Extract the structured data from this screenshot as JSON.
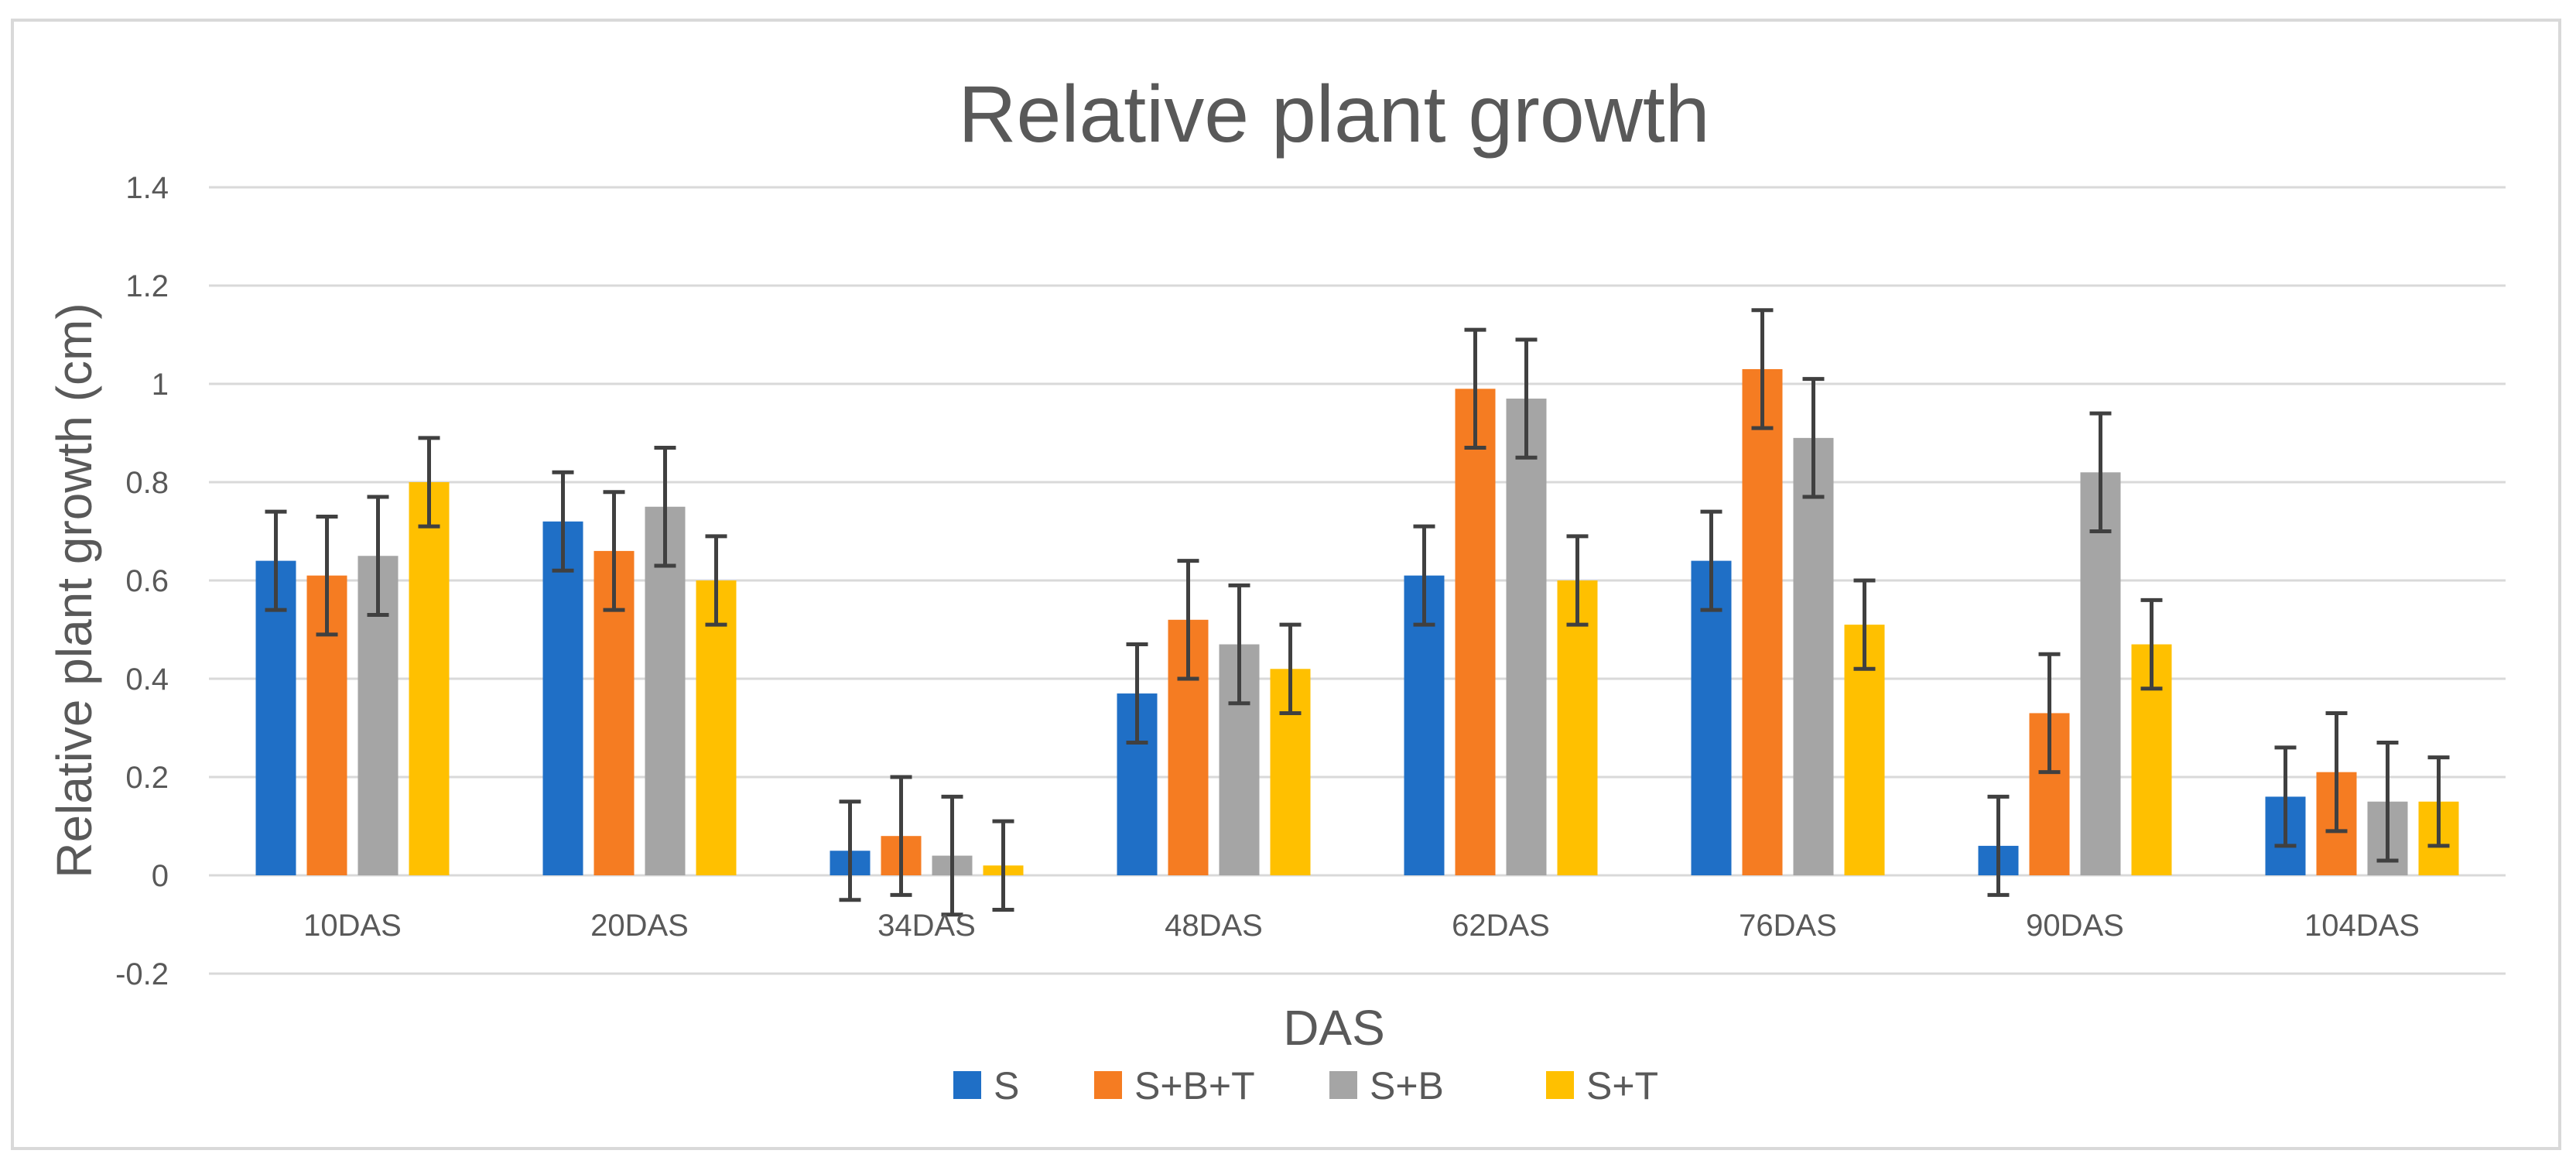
{
  "chart_data": {
    "type": "bar",
    "title": "Relative plant growth",
    "xlabel": "DAS",
    "ylabel": "Relative plant growth (cm)",
    "ylim": [
      -0.2,
      1.4
    ],
    "ytick_labels": [
      "-0.2",
      "0",
      "0.2",
      "0.4",
      "0.6",
      "0.8",
      "1",
      "1.2",
      "1.4"
    ],
    "ytick_values": [
      -0.2,
      0,
      0.2,
      0.4,
      0.6,
      0.8,
      1.0,
      1.2,
      1.4
    ],
    "grid": true,
    "legend_position": "bottom",
    "categories": [
      "10DAS",
      "20DAS",
      "34DAS",
      "48DAS",
      "62DAS",
      "76DAS",
      "90DAS",
      "104DAS"
    ],
    "series": [
      {
        "name": "S",
        "color": "#1f6fc6",
        "values": [
          0.64,
          0.72,
          0.05,
          0.37,
          0.61,
          0.64,
          0.06,
          0.16
        ],
        "errors": [
          0.1,
          0.1,
          0.1,
          0.1,
          0.1,
          0.1,
          0.1,
          0.1
        ]
      },
      {
        "name": "S+B+T",
        "color": "#f57c22",
        "values": [
          0.61,
          0.66,
          0.08,
          0.52,
          0.99,
          1.03,
          0.33,
          0.21
        ],
        "errors": [
          0.12,
          0.12,
          0.12,
          0.12,
          0.12,
          0.12,
          0.12,
          0.12
        ]
      },
      {
        "name": "S+B",
        "color": "#a5a5a5",
        "values": [
          0.65,
          0.75,
          0.04,
          0.47,
          0.97,
          0.89,
          0.82,
          0.15
        ],
        "errors": [
          0.12,
          0.12,
          0.12,
          0.12,
          0.12,
          0.12,
          0.12,
          0.12
        ]
      },
      {
        "name": "S+T",
        "color": "#ffc000",
        "values": [
          0.8,
          0.6,
          0.02,
          0.42,
          0.6,
          0.51,
          0.47,
          0.15
        ],
        "errors": [
          0.09,
          0.09,
          0.09,
          0.09,
          0.09,
          0.09,
          0.09,
          0.09
        ]
      }
    ]
  },
  "colors": {
    "gridline": "#d9d9d9",
    "axis_text": "#595959",
    "error_bar": "#404040",
    "frame": "#d9d9d9"
  }
}
